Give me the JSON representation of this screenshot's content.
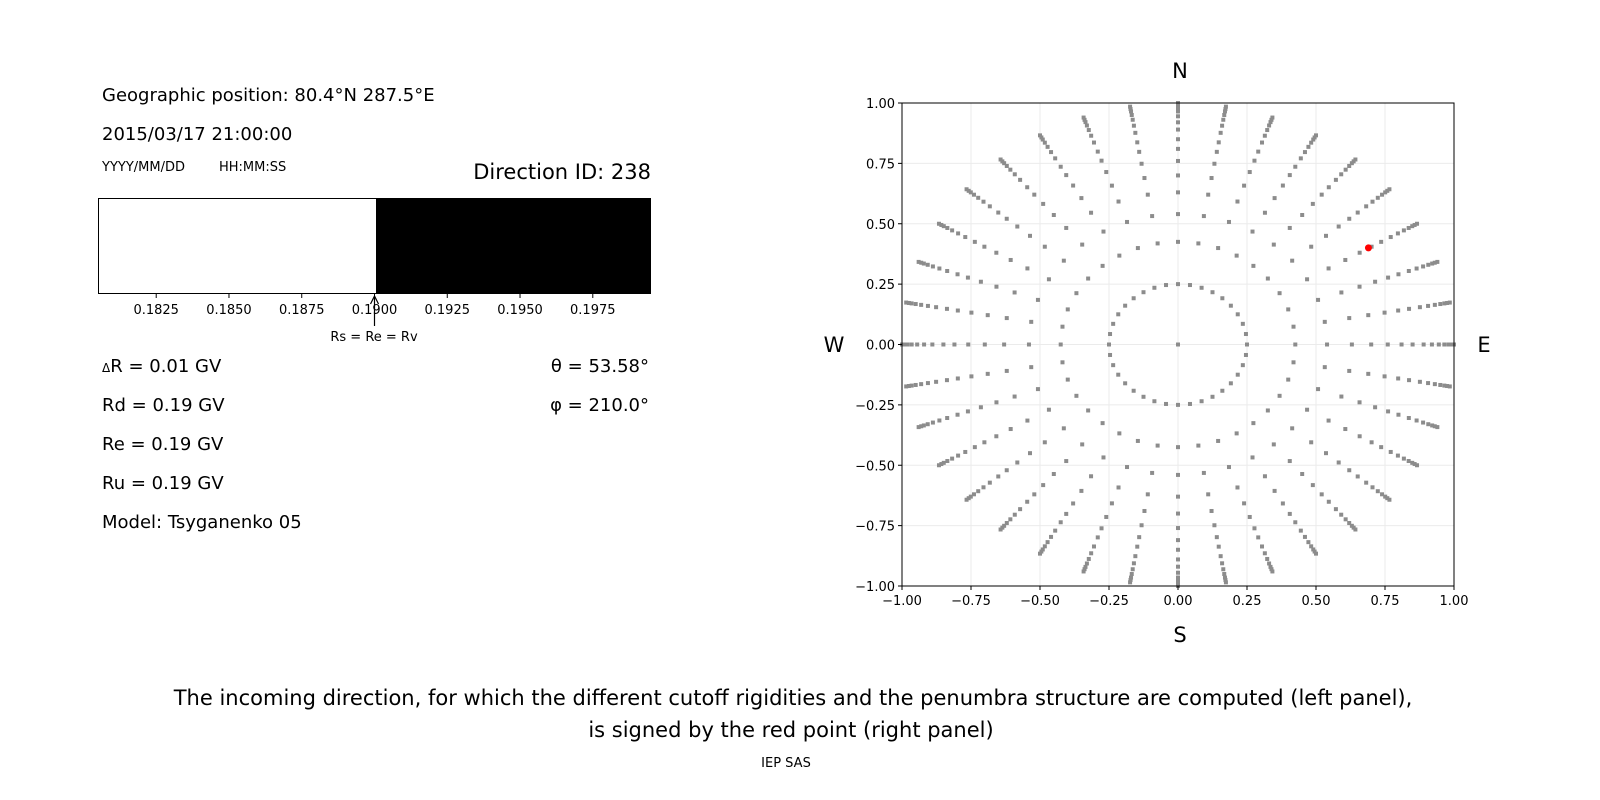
{
  "left_panel": {
    "geo_position": "Geographic position: 80.4°N 287.5°E",
    "datetime": "2015/03/17 21:00:00",
    "date_format_label": "YYYY/MM/DD",
    "time_format_label": "HH:MM:SS",
    "direction_id": "Direction ID: 238",
    "delta_r": "R = 0.01 GV",
    "delta_symbol": "Δ",
    "rd": "Rd = 0.19 GV",
    "re": "Re = 0.19 GV",
    "ru": "Ru = 0.19 GV",
    "model": "Model: Tsyganenko 05",
    "theta": "θ = 53.58°",
    "phi": "φ = 210.0°",
    "marker_label": "Rs = Re = Rv"
  },
  "caption": {
    "line1": "The incoming direction, for which the different cutoff rigidities and the penumbra structure are computed (left panel),",
    "line2": "is signed by the red point (right panel)",
    "credit": "IEP SAS"
  },
  "chart_data": [
    {
      "type": "bar",
      "description_of_marks": "penumbra strip: allowed (white) / forbidden (black)",
      "xlim": [
        0.1805,
        0.1995
      ],
      "xticks": [
        "0.1825",
        "0.1850",
        "0.1875",
        "0.1900",
        "0.1925",
        "0.1950",
        "0.1975"
      ],
      "xtick_values": [
        0.1825,
        0.185,
        0.1875,
        0.19,
        0.1925,
        0.195,
        0.1975
      ],
      "segments": [
        {
          "from": 0.1805,
          "to": 0.19,
          "color": "#ffffff"
        },
        {
          "from": 0.19,
          "to": 0.1995,
          "color": "#000000"
        }
      ],
      "marker_value": 0.19,
      "grid": false
    },
    {
      "type": "scatter",
      "xlim": [
        -1.0,
        1.0
      ],
      "ylim": [
        -1.0,
        1.0
      ],
      "xticks": [
        "−1.00",
        "−0.75",
        "−0.50",
        "−0.25",
        "0.00",
        "0.25",
        "0.50",
        "0.75",
        "1.00"
      ],
      "yticks": [
        "−1.00",
        "−0.75",
        "−0.50",
        "−0.25",
        "0.00",
        "0.25",
        "0.50",
        "0.75",
        "1.00"
      ],
      "tick_values": [
        -1,
        -0.75,
        -0.5,
        -0.25,
        0,
        0.25,
        0.5,
        0.75,
        1
      ],
      "compass": {
        "north": "N",
        "south": "S",
        "west": "W",
        "east": "E"
      },
      "grid": true,
      "point_color": "#8c8c8c",
      "direction_grid": {
        "center_point": [
          0,
          0
        ],
        "rings": [
          {
            "r": 0.25,
            "n": 36
          },
          {
            "r": 0.425,
            "n": 36
          },
          {
            "r": 0.54,
            "n": 36
          },
          {
            "r": 0.63,
            "n": 36
          },
          {
            "r": 0.7,
            "n": 36
          },
          {
            "r": 0.76,
            "n": 36
          },
          {
            "r": 0.81,
            "n": 36
          },
          {
            "r": 0.85,
            "n": 36
          },
          {
            "r": 0.89,
            "n": 36
          },
          {
            "r": 0.92,
            "n": 36
          },
          {
            "r": 0.945,
            "n": 36
          },
          {
            "r": 0.965,
            "n": 36
          },
          {
            "r": 0.98,
            "n": 36
          },
          {
            "r": 0.99,
            "n": 36
          },
          {
            "r": 1.0,
            "n": 36
          }
        ]
      },
      "highlight": {
        "x": 0.69,
        "y": 0.4,
        "color": "#ff0000"
      }
    }
  ]
}
